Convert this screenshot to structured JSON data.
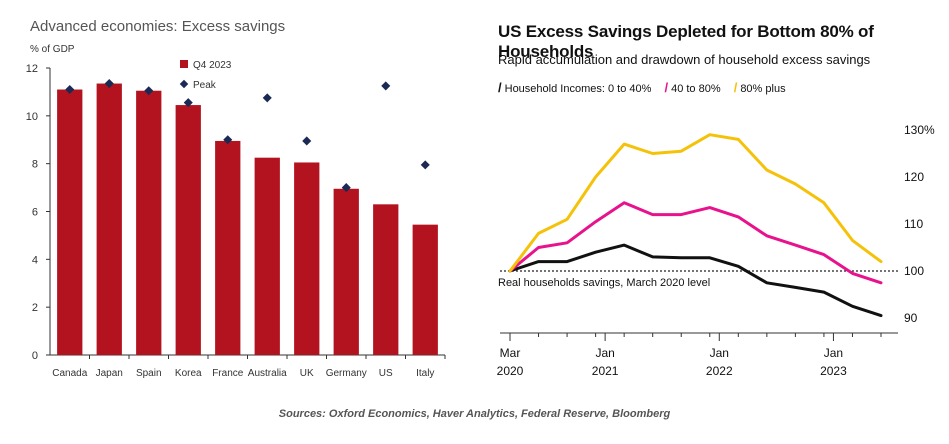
{
  "left_chart": {
    "title": "Advanced economies: Excess savings",
    "unit": "% of GDP",
    "legend": [
      {
        "label": "Q4 2023",
        "color": "#b3121f"
      },
      {
        "label": "Peak",
        "color": "#1b2a55"
      }
    ]
  },
  "right_chart": {
    "title": "US Excess Savings Depleted for Bottom 80% of Households",
    "subtitle": "Rapid accumulation and drawdown of household excess savings",
    "legend": [
      {
        "label": "Household Incomes: 0 to 40%",
        "color": "#111111"
      },
      {
        "label": "40 to 80%",
        "color": "#e8138c"
      },
      {
        "label": "80% plus",
        "color": "#f5c20a"
      }
    ],
    "reference_label": "Real households savings, March 2020 level",
    "y_tick_suffix": "%"
  },
  "sources": "Sources: Oxford Economics, Haver Analytics, Federal Reserve, Bloomberg",
  "chart_data": [
    {
      "type": "bar",
      "title": "Advanced economies: Excess savings",
      "ylabel": "% of GDP",
      "ylim": [
        0,
        12
      ],
      "yticks": [
        0,
        2,
        4,
        6,
        8,
        10,
        12
      ],
      "categories": [
        "Canada",
        "Japan",
        "Spain",
        "Korea",
        "France",
        "Australia",
        "UK",
        "Germany",
        "US",
        "Italy"
      ],
      "series": [
        {
          "name": "Q4 2023",
          "type": "bar",
          "values": [
            11.1,
            11.35,
            11.05,
            10.45,
            8.95,
            8.25,
            8.05,
            6.95,
            6.3,
            5.45
          ]
        },
        {
          "name": "Peak",
          "type": "scatter",
          "values": [
            11.1,
            11.35,
            11.05,
            10.55,
            9.0,
            10.75,
            8.95,
            7.0,
            11.25,
            7.95
          ]
        }
      ],
      "grid": false,
      "legend_position": "top"
    },
    {
      "type": "line",
      "title": "US Excess Savings Depleted for Bottom 80% of Households",
      "subtitle": "Rapid accumulation and drawdown of household excess savings",
      "x": [
        "2020-03",
        "2020-06",
        "2020-09",
        "2020-12",
        "2021-03",
        "2021-06",
        "2021-09",
        "2021-12",
        "2022-03",
        "2022-06",
        "2022-09",
        "2022-12",
        "2023-03",
        "2023-06"
      ],
      "xticks": [
        "Mar 2020",
        "Jan 2021",
        "Jan 2022",
        "Jan 2023"
      ],
      "ylim": [
        88,
        131
      ],
      "yticks": [
        90,
        100,
        110,
        120,
        130
      ],
      "y_axis_position": "right",
      "series": [
        {
          "name": "Household Incomes: 0 to 40%",
          "values": [
            100,
            102,
            102,
            104,
            105.5,
            103,
            102.8,
            102.8,
            101,
            97.5,
            96.5,
            95.5,
            92.5,
            90.5
          ]
        },
        {
          "name": "40 to 80%",
          "values": [
            100,
            105,
            106,
            110.5,
            114.5,
            112,
            112,
            113.5,
            111.5,
            107.5,
            105.5,
            103.5,
            99.5,
            97.5
          ]
        },
        {
          "name": "80% plus",
          "values": [
            100,
            108,
            111,
            120,
            127,
            125,
            125.5,
            129,
            128,
            121.5,
            118.5,
            114.5,
            106.5,
            102
          ]
        }
      ],
      "reference_line": {
        "value": 100,
        "label": "Real households savings, March 2020 level",
        "style": "dotted"
      },
      "grid": false,
      "legend_position": "top-left"
    }
  ]
}
